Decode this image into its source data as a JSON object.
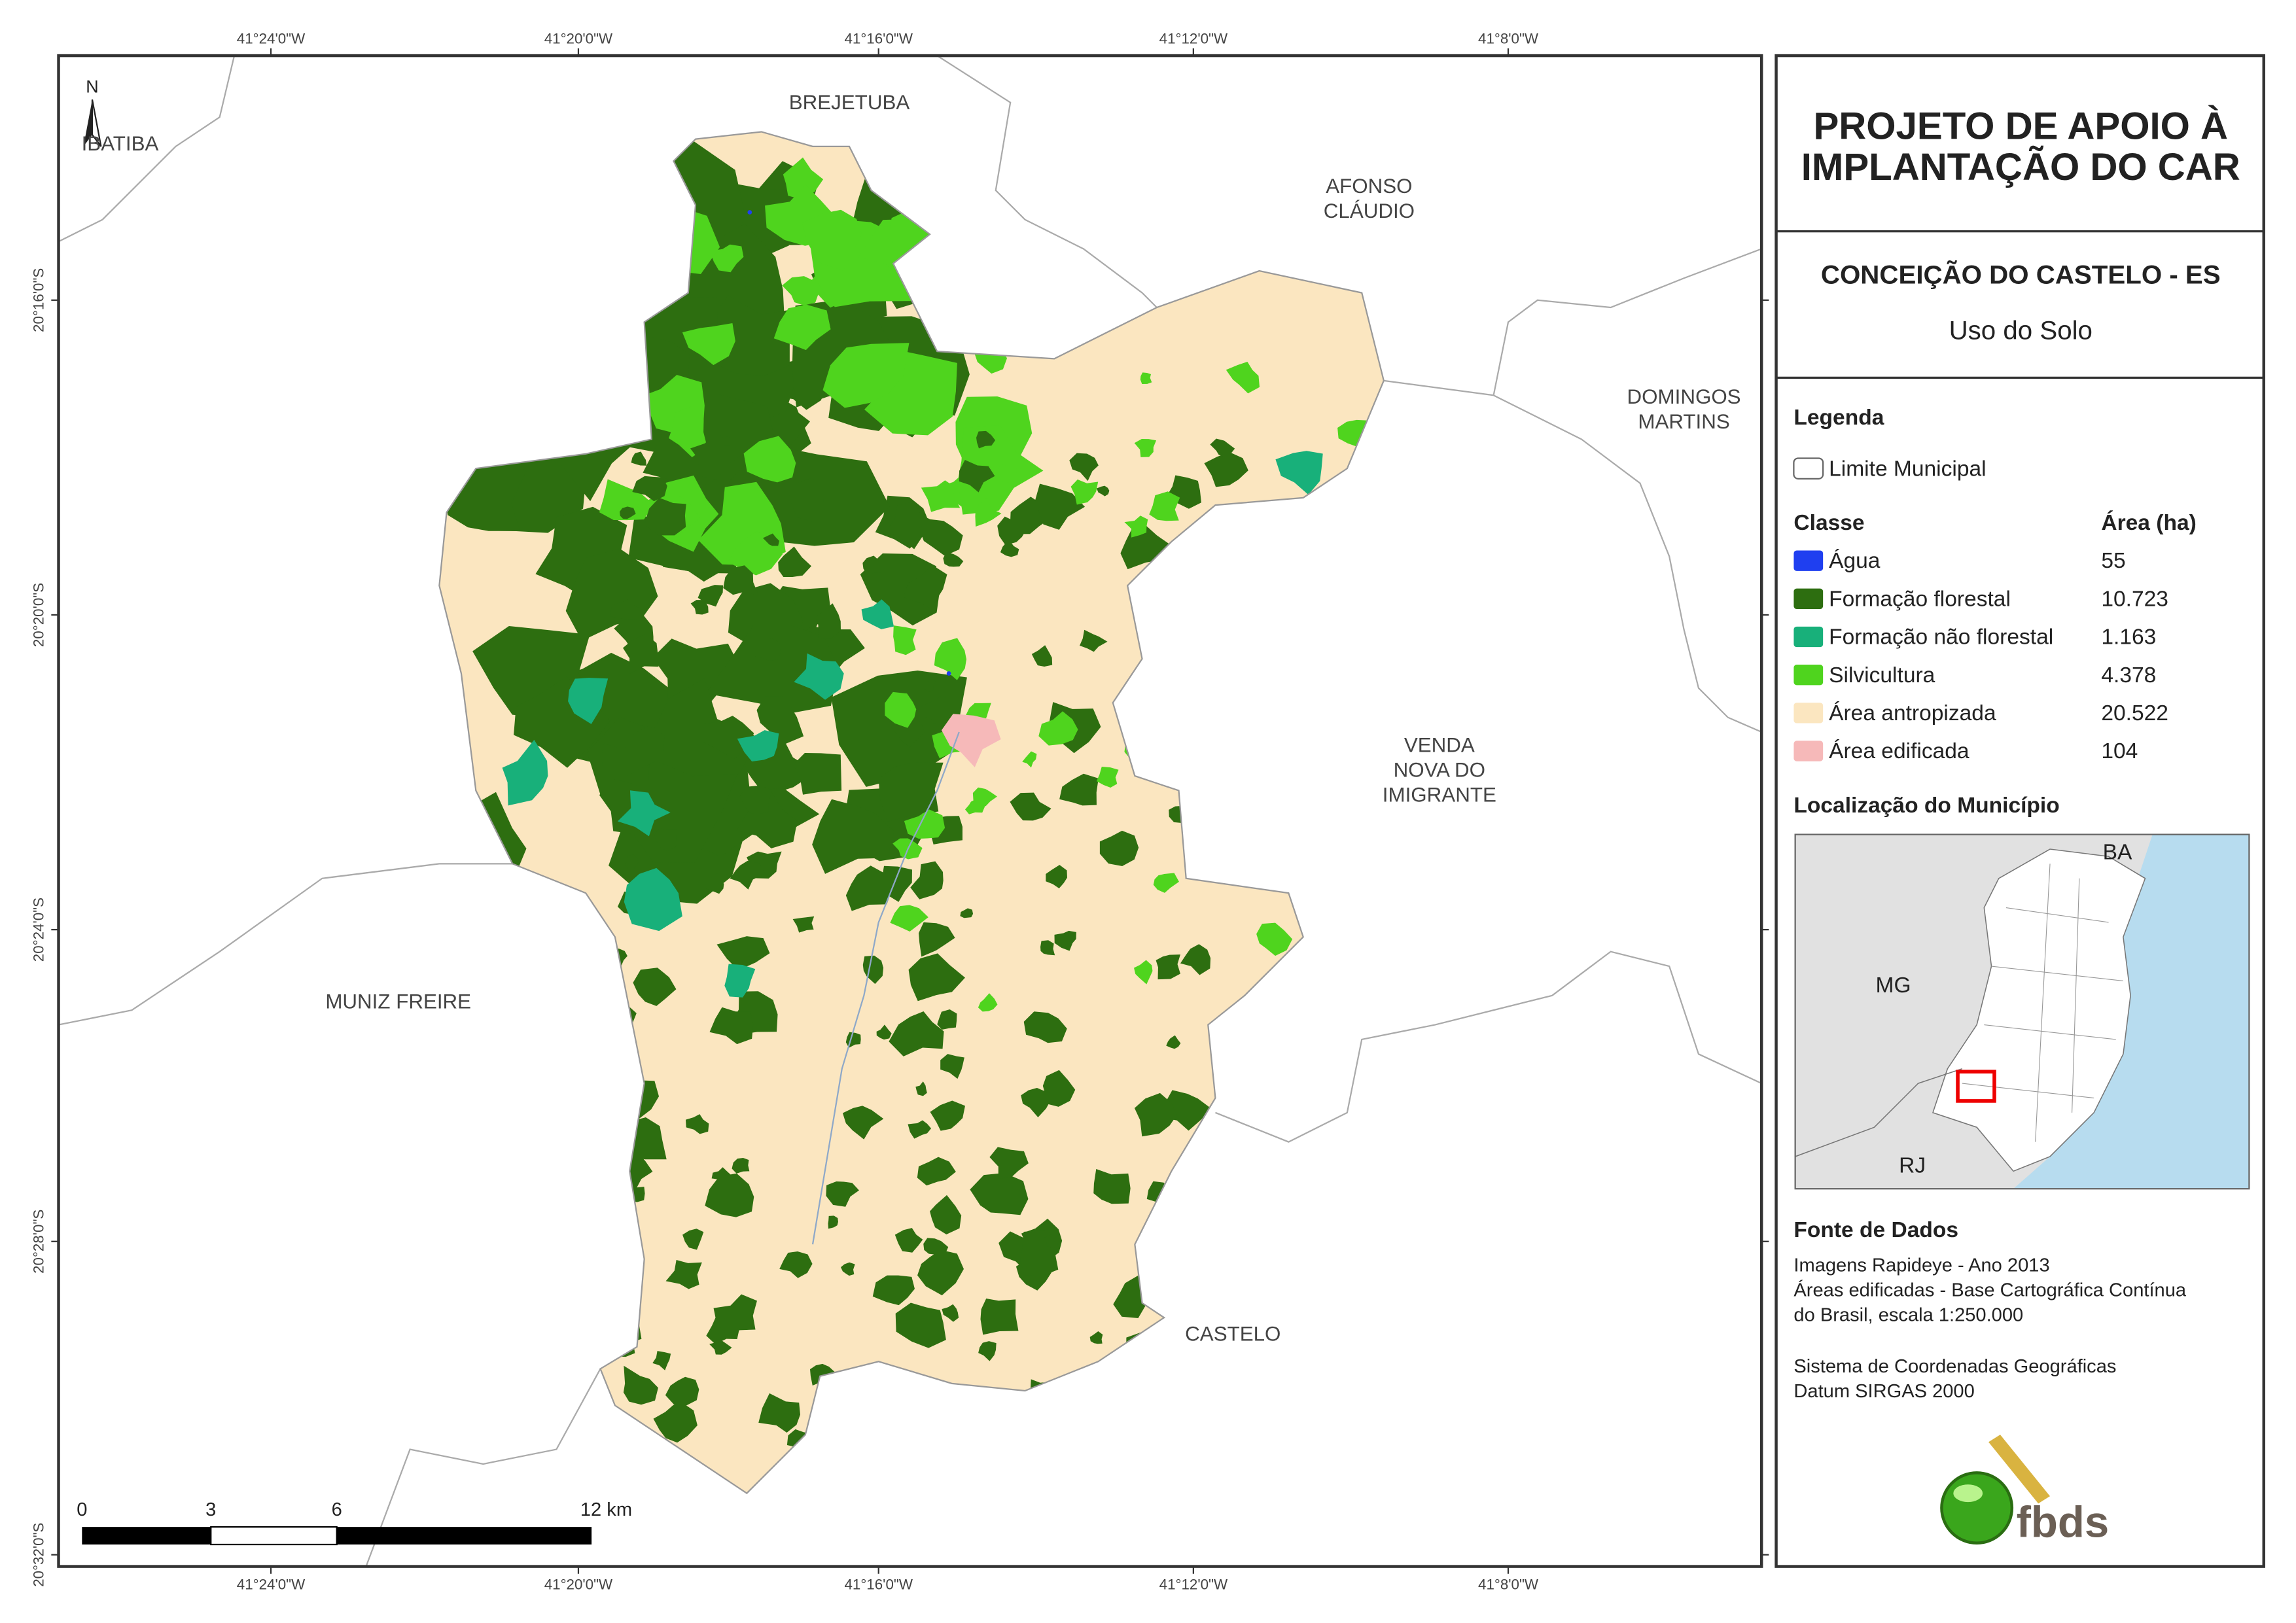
{
  "map": {
    "lon_labels": [
      "41°24'0\"W",
      "41°20'0\"W",
      "41°16'0\"W",
      "41°12'0\"W",
      "41°8'0\"W"
    ],
    "lat_labels": [
      "20°16'0\"S",
      "20°20'0\"S",
      "20°24'0\"S",
      "20°28'0\"S",
      "20°32'0\"S"
    ],
    "north": "N",
    "places": [
      {
        "lines": [
          "IBATIBA"
        ]
      },
      {
        "lines": [
          "BREJETUBA"
        ]
      },
      {
        "lines": [
          "AFONSO",
          "CLÁUDIO"
        ]
      },
      {
        "lines": [
          "DOMINGOS",
          "MARTINS"
        ]
      },
      {
        "lines": [
          "VENDA",
          "NOVA DO",
          "IMIGRANTE"
        ]
      },
      {
        "lines": [
          "MUNIZ FREIRE"
        ]
      },
      {
        "lines": [
          "CASTELO"
        ]
      }
    ],
    "scale_bar": [
      "0",
      "3",
      "6",
      "12 km"
    ]
  },
  "panel": {
    "title": [
      "PROJETO DE APOIO À",
      "IMPLANTAÇÃO DO CAR"
    ],
    "municipality": "CONCEIÇÃO DO CASTELO - ES",
    "subtitle": "Uso do Solo",
    "legend_title": "Legenda",
    "boundary_label": "Limite Municipal",
    "class_header": "Classe",
    "area_header": "Área (ha)",
    "classes": [
      {
        "name": "Água",
        "area": "55",
        "color": "#1f3ff0"
      },
      {
        "name": "Formação florestal",
        "area": "10.723",
        "color": "#2d6e10"
      },
      {
        "name": "Formação não florestal",
        "area": "1.163",
        "color": "#18b07a"
      },
      {
        "name": "Silvicultura",
        "area": "4.378",
        "color": "#4fd41e"
      },
      {
        "name": "Área antropizada",
        "area": "20.522",
        "color": "#fbe6c0"
      },
      {
        "name": "Área edificada",
        "area": "104",
        "color": "#f6b9b9"
      }
    ],
    "location_title": "Localização do Município",
    "inset_labels": [
      "BA",
      "MG",
      "RJ"
    ],
    "source_title": "Fonte de Dados",
    "source_lines": [
      "Imagens Rapideye - Ano 2013",
      "Áreas edificadas - Base Cartográfica Contínua",
      "do Brasil, escala 1:250.000"
    ],
    "crs_lines": [
      "Sistema de Coordenadas Geográficas",
      "Datum SIRGAS 2000"
    ],
    "logo": "fbds"
  }
}
